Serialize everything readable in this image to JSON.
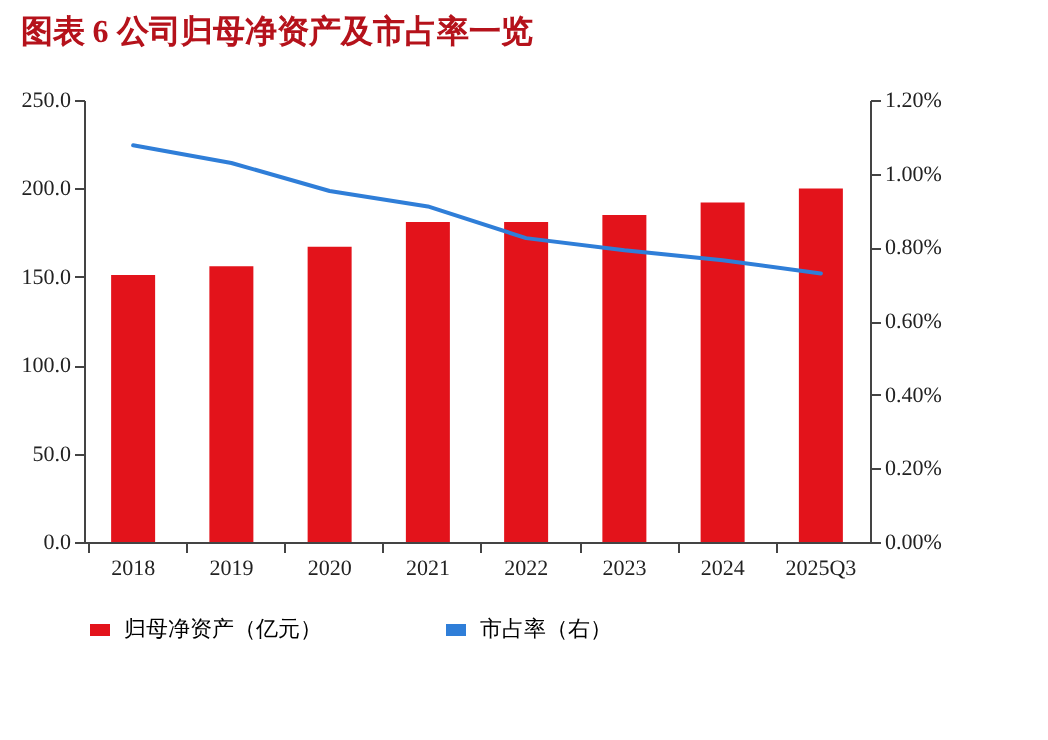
{
  "chart_data": {
    "type": "bar",
    "title": "图表 6  公司归母净资产及市占率一览",
    "categories": [
      "2018",
      "2019",
      "2020",
      "2021",
      "2022",
      "2023",
      "2024",
      "2025Q3"
    ],
    "series": [
      {
        "name": "归母净资产（亿元）",
        "color": "#e3131b",
        "values": [
          151,
          156,
          167,
          181,
          181,
          185,
          192,
          200
        ]
      },
      {
        "name": "市占率（右）",
        "type": "line",
        "axis": "y2",
        "color": "#2f7ed8",
        "values": [
          1.077,
          1.029,
          0.953,
          0.911,
          0.825,
          0.792,
          0.765,
          0.729
        ]
      }
    ],
    "ylim": [
      0,
      250
    ],
    "yticks": [
      {
        "value": 0,
        "label": "0.0"
      },
      {
        "value": 50,
        "label": "50.0"
      },
      {
        "value": 100,
        "label": "100.0"
      },
      {
        "value": 150,
        "label": "150.0"
      },
      {
        "value": 200,
        "label": "200.0"
      },
      {
        "value": 250,
        "label": "250.0"
      }
    ],
    "y2lim": [
      0,
      1.2
    ],
    "y2ticks": [
      {
        "value": 0,
        "label": "0.00%"
      },
      {
        "value": 0.2,
        "label": "0.20%"
      },
      {
        "value": 0.4,
        "label": "0.40%"
      },
      {
        "value": 0.6,
        "label": "0.60%"
      },
      {
        "value": 0.8,
        "label": "0.80%"
      },
      {
        "value": 1.0,
        "label": "1.00%"
      },
      {
        "value": 1.2,
        "label": "1.20%"
      }
    ],
    "legend": "bottom"
  }
}
